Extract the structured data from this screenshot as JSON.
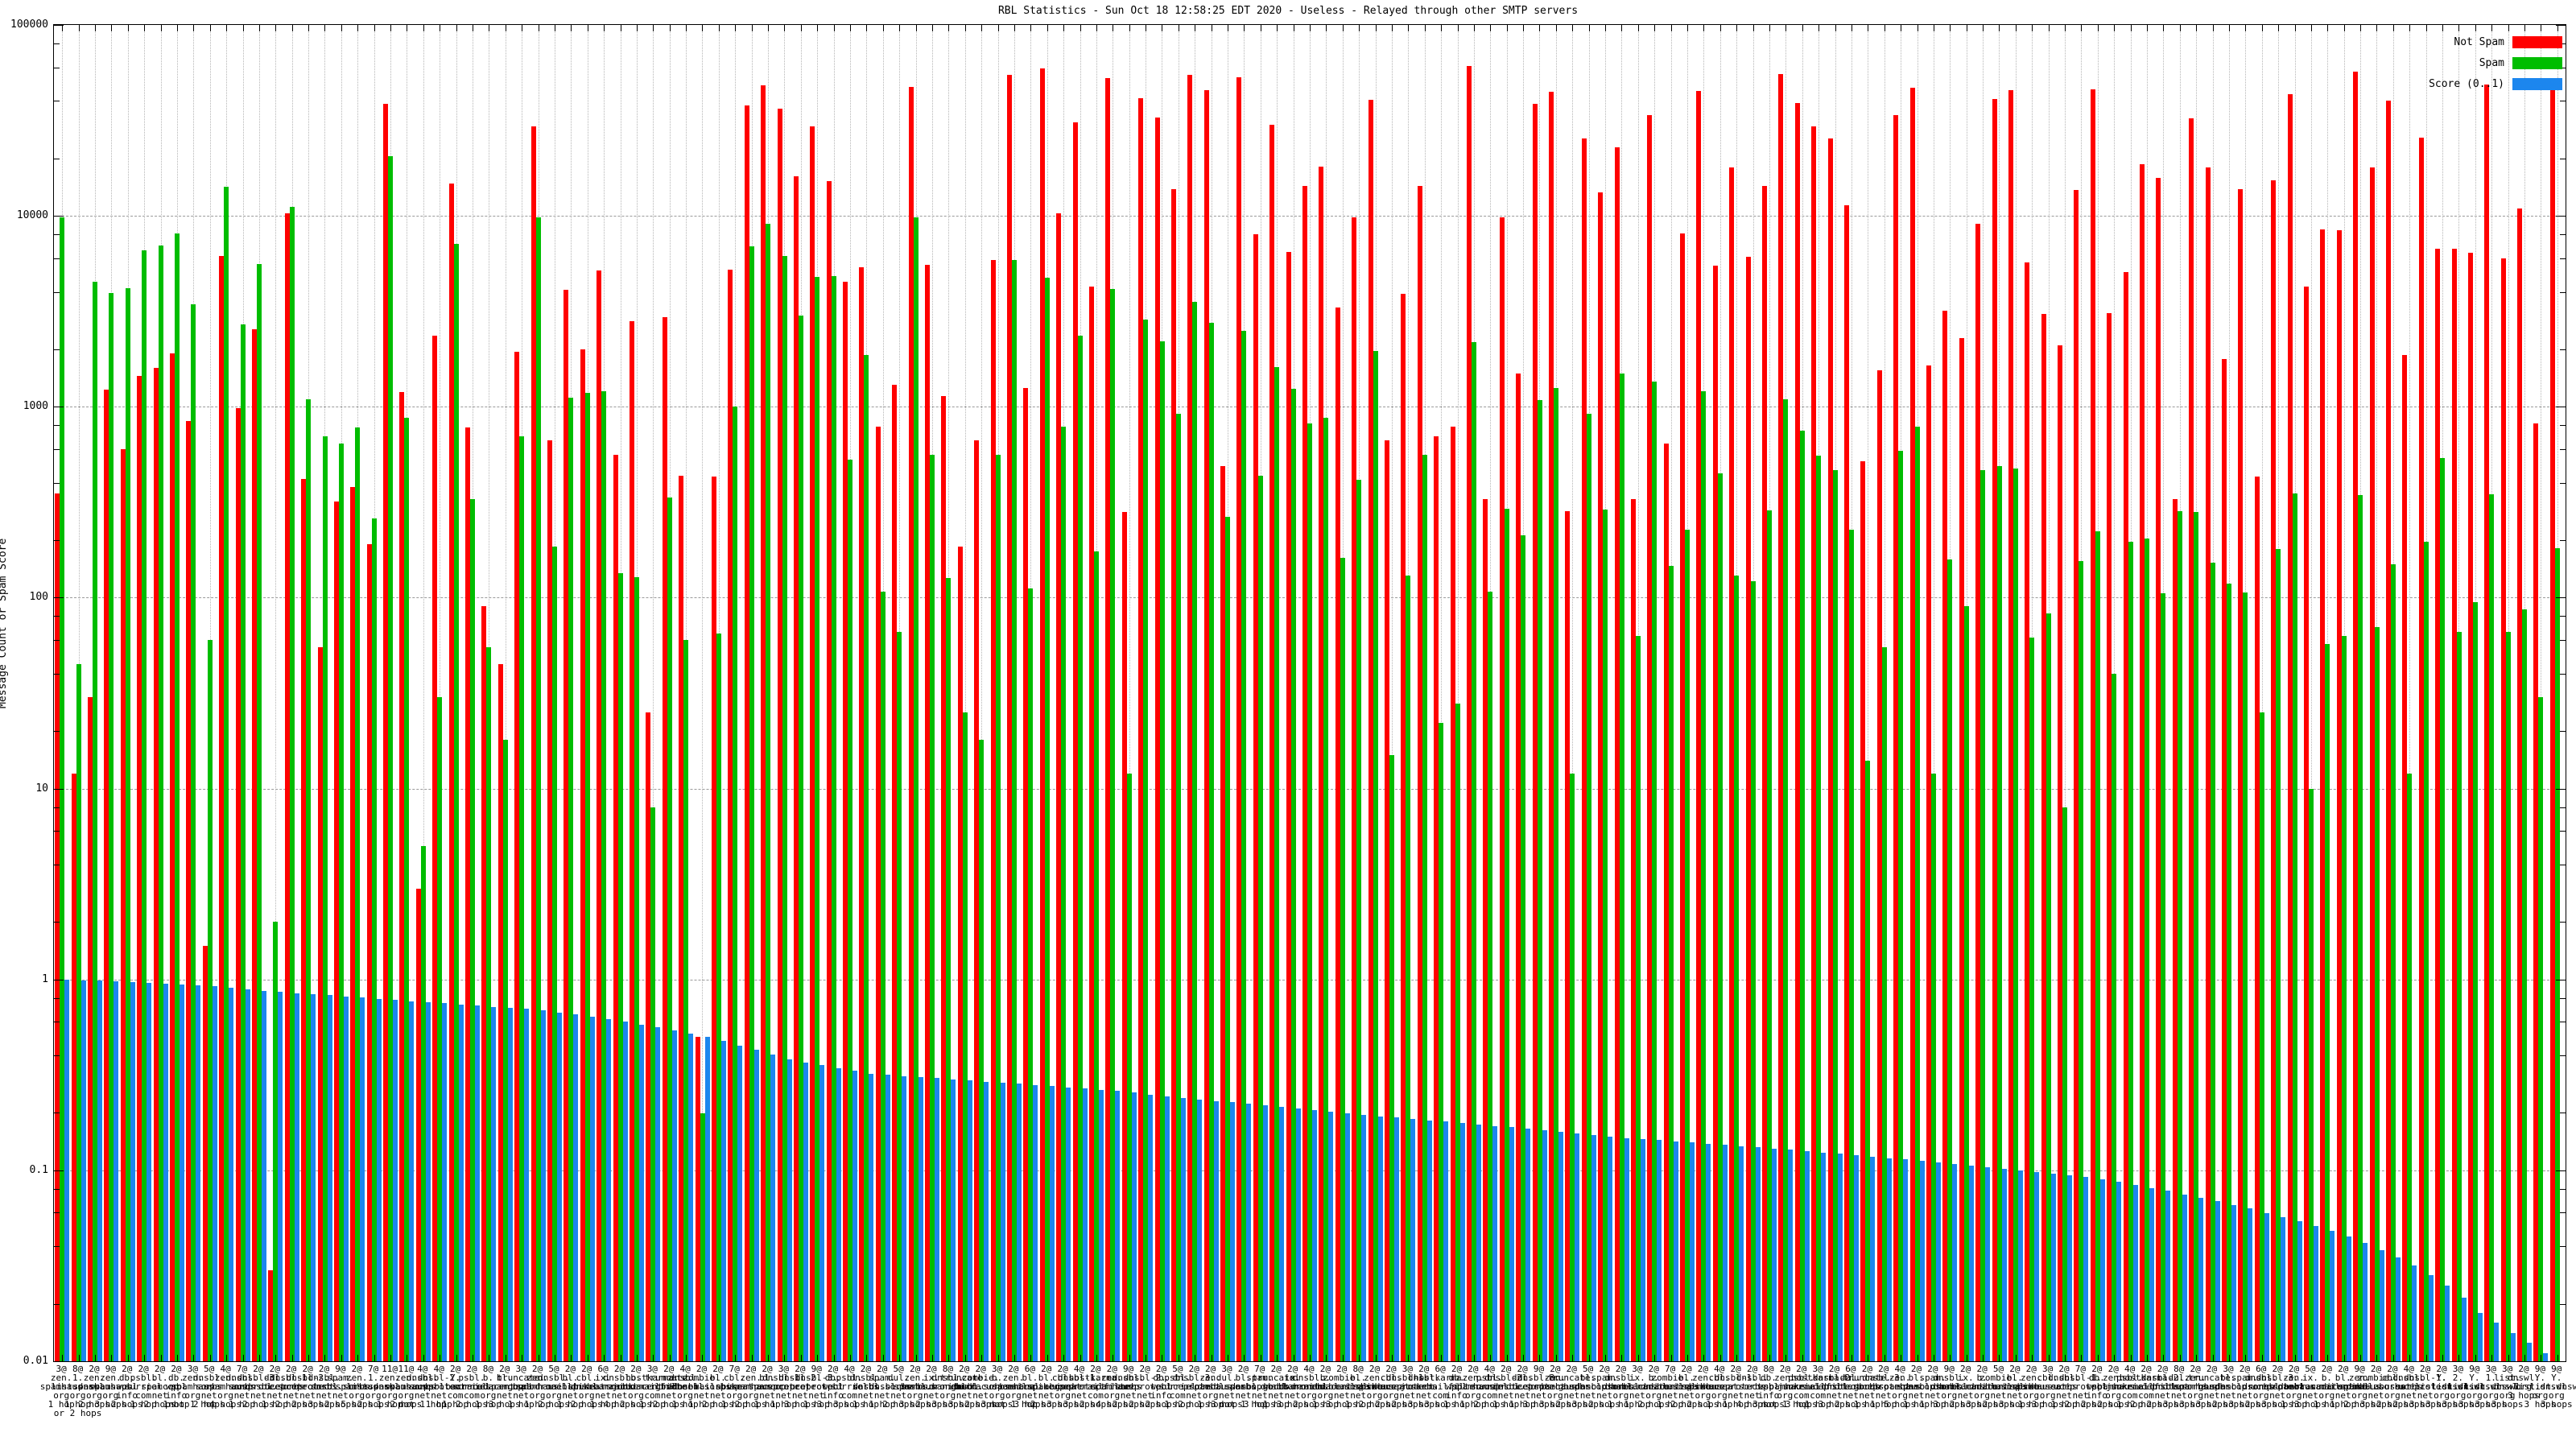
{
  "title": "RBL Statistics - Sun Oct 18 12:58:25 EDT 2020 - Useless - Relayed through other SMTP servers",
  "ylabel": "Message Count or Spam Score",
  "yticks": [
    "100000",
    "10000",
    "1000",
    "100",
    "10",
    "1",
    "0.1",
    "0.01"
  ],
  "chart_data": {
    "type": "bar",
    "yscale": "log",
    "ylim": [
      0.01,
      100000
    ],
    "grid": true,
    "legend_position": "top-right-inside",
    "colors": {
      "not_spam": "#ff0000",
      "spam": "#00bd00",
      "score": "#1c86ee",
      "grid": "#9a9a9a"
    },
    "categories": [
      "3@ zen.spamhaus.org 1 hop",
      "8@ 1.list.dnswl.org 1 hop or 2 hops",
      "2@ zen.spamhaus.org 2 hops",
      "9@ zen.spamhaus.org 3 hops",
      "2@ db.wpbl.info 2 hops",
      "2@ psbl.surriel.com 1 hop",
      "2@ bl.spamcop.net 2 hops",
      "2@ db.wpbl.info 1 hop",
      "3@ zen.spamhaus.org not 1 hop",
      "5@ dnsbl.sorbs.net 2 hops",
      "4@ zen.spamhaus.org 4 hops",
      "7@ dnsbl.sorbs.net 1 hop",
      "2@ dnsbl-3.uceprotect.net 2 hops",
      "2@ dul.dnsbl.sorbs.net 1 hop",
      "2@ dnsbl-1.uceprotect.net 2 hops",
      "2@ dnsbl-2.uceprotect.net 2 hops",
      "2@ dnsbl.sorbs.net 3 hops",
      "9@ spam.dnsbl.sorbs.net 2 hops",
      "2@ zen.spamhaus.org 5 hops",
      "7@ 1.list.dnswl.org 2 hops",
      "11@ zen.spamhaus.org 1 hop",
      "11@ zen.spamhaus.org 2 hops",
      "4@ dnsbl.sorbs.net not 1 hop",
      "4@ dnsbl-2.uceprotect.net 1 hop",
      "2@ Y.psbl.surriel.com 1 hop",
      "2@ psbl.surriel.com 2 hops",
      "8@ b.barracudacentral.org 1 hop",
      "2@ bl.spamcop.net 3 hops",
      "3@ truncate.gbudb.net 1 hop",
      "2@ zen.spamhaus.org 1 hop",
      "5@ dnsbl.dronebl.org 2 hops",
      "2@ bl.mailspike.net 1 hop",
      "2@ cbl.abuseat.org 2 hops",
      "6@ ix.dnsbl.manitu.net 1 hop",
      "2@ dnsbl.sorbs.net 4 hops",
      "2@ b.barracudacentral.org 2 hops",
      "3@ hostkarma.junkemailfilter.com 1 hop",
      "2@ truncate.gbudb.net 2 hops",
      "4@ dnsbl.dronebl.org 1 hop",
      "2@ zombie.dnsbl.sorbs.net 1 hop",
      "2@ bl.mailspike.net 2 hops",
      "7@ cbl.abuseat.org 1 hop",
      "2@ zen.spamhaus.org 2 hops",
      "2@ bl.spamcop.net 1 hop",
      "3@ dnsbl-1.uceprotect.net 1 hop",
      "2@ dnsbl-2.uceprotect.net 3 hops",
      "9@ dnsbl-3.uceprotect.net 1 hop",
      "2@ db.wpbl.info 3 hops",
      "4@ psbl.surriel.com 3 hops",
      "2@ dnsbl.sorbs.net 1 hop",
      "2@ spam.dnsbl.sorbs.net 1 hop",
      "5@ dul.dnsbl.sorbs.net 2 hops",
      "2@ zen.spamhaus.org 3 hops",
      "2@ ix.dnsbl.manitu.net 2 hops",
      "8@ dnsbl.dronebl.org 3 hops",
      "2@ truncate.gbudb.net 3 hops",
      "2@ zombie.dnsbl.sorbs.net 2 hops",
      "3@ b.barracudacentral.org 3 hops",
      "2@ zen.spamhaus.org not 1 hop",
      "6@ bl.mailspike.net 3 hops",
      "2@ bl.spamcop.net 2 hops",
      "2@ cbl.abuseat.org 3 hops",
      "4@ dnsbl-1.uceprotect.net 3 hops",
      "2@ hostkarma.junkemailfilter.com 2 hops",
      "2@ zen.spamhaus.org 4 hops",
      "9@ dnsbl.sorbs.net 2 hops",
      "2@ dnsbl-2.uceprotect.net 2 hops",
      "2@ db.wpbl.info 2 hops",
      "5@ psbl.surriel.com 1 hop",
      "2@ dnsbl-3.uceprotect.net 2 hops",
      "2@ zen.spamhaus.org 1 hop",
      "3@ dul.dnsbl.sorbs.net 3 hops",
      "2@ bl.spamcop.net not 1 hop",
      "7@ spam.dnsbl.sorbs.net 3 hops",
      "2@ truncate.gbudb.net 1 hop",
      "2@ ix.dnsbl.manitu.net 3 hops",
      "4@ dnsbl.dronebl.org 2 hops",
      "2@ b.barracudacentral.org 1 hop",
      "2@ zombie.dnsbl.sorbs.net 3 hops",
      "8@ bl.mailspike.net 1 hop",
      "2@ zen.spamhaus.org 2 hops",
      "2@ cbl.abuseat.org 2 hops",
      "3@ dnsbl-1.uceprotect.net 2 hops",
      "2@ dnsbl.sorbs.net 3 hops",
      "6@ hostkarma.junkemailfilter.com 3 hops",
      "2@ db.wpbl.info 1 hop",
      "2@ zen.spamhaus.org 1 hop",
      "4@ psbl.surriel.com 2 hops",
      "2@ dnsbl-2.uceprotect.net 1 hop",
      "2@ dul.dnsbl.sorbs.net 1 hop",
      "9@ dnsbl-3.uceprotect.net 3 hops",
      "2@ zen.spamhaus.org 3 hops",
      "2@ truncate.gbudb.net 2 hops",
      "5@ bl.spamcop.net 3 hops",
      "2@ spam.dnsbl.sorbs.net 2 hops",
      "2@ dnsbl.dronebl.org 1 hop",
      "3@ ix.dnsbl.manitu.net 1 hop",
      "2@ b.barracudacentral.org 2 hops",
      "7@ zombie.dnsbl.sorbs.net 1 hop",
      "2@ bl.mailspike.net 2 hops",
      "2@ zen.spamhaus.org 2 hops",
      "4@ cbl.abuseat.org 1 hop",
      "2@ dnsbl-1.uceprotect.net 1 hop",
      "2@ dnsbl.sorbs.net 4 hops",
      "8@ db.wpbl.info 3 hops",
      "2@ zen.spamhaus.org not 1 hop",
      "2@ psbl.surriel.com 3 hops",
      "3@ hostkarma.junkemailfilter.com 1 hop",
      "2@ dnsbl-2.uceprotect.net 3 hops",
      "6@ dul.dnsbl.sorbs.net 2 hops",
      "2@ truncate.gbudb.net 1 hop",
      "2@ dnsbl-3.uceprotect.net 1 hop",
      "4@ zen.spamhaus.org 5 hops",
      "2@ bl.spamcop.net 1 hop",
      "2@ spam.dnsbl.sorbs.net 1 hop",
      "9@ dnsbl.dronebl.org 3 hops",
      "2@ ix.dnsbl.manitu.net 2 hops",
      "2@ b.barracudacentral.org 3 hops",
      "5@ zombie.dnsbl.sorbs.net 2 hops",
      "2@ bl.mailspike.net 3 hops",
      "2@ zen.spamhaus.org 1 hop",
      "3@ cbl.abuseat.org 3 hops",
      "2@ dnsbl.sorbs.net 1 hop",
      "7@ dnsbl-1.uceprotect.net 2 hops",
      "2@ db.wpbl.info 2 hops",
      "2@ zen.spamhaus.org 2 hops",
      "4@ psbl.surriel.com 1 hop",
      "2@ hostkarma.junkemailfilter.com 2 hops",
      "2@ dnsbl-2.uceprotect.net 2 hops",
      "8@ dul.dnsbl.sorbs.net 3 hops",
      "2@ zen.spamhaus.org 3 hops",
      "2@ truncate.gbudb.net 3 hops",
      "3@ bl.spamcop.net 2 hops",
      "2@ spam.dnsbl.sorbs.net 3 hops",
      "6@ dnsbl.dronebl.org 2 hops",
      "2@ dnsbl-3.uceprotect.net 3 hops",
      "2@ zen.spamhaus.org 1 hop",
      "5@ ix.dnsbl.manitu.net 3 hops",
      "2@ b.barracudacentral.org 1 hop",
      "2@ bl.mailspike.net 1 hop",
      "9@ zen.spamhaus.org 2 hops",
      "2@ zombie.dnsbl.sorbs.net 3 hops",
      "2@ cbl.abuseat.org 2 hops",
      "4@ dnsbl.sorbs.net 2 hops",
      "2@ dnsbl-1.uceprotect.net 3 hops",
      "2@ Y.list.dnswl.org 3 hops",
      "3@ 2.list.dnswl.org 3 hops",
      "9@ Y.list.dnswl.org 3 hops",
      "3@ 1.list.dnswl.org 3 hops",
      "3@ list.dnswl.org 3 hops",
      "2@ dnswl.org 3 hops",
      "9@ Y.list.dnswl.org 3 hops",
      "9@ Y.list.dnswl.org 3 hops"
    ],
    "series": [
      {
        "name": "Not Spam",
        "color": "#ff0000",
        "values": [
          350,
          12,
          30,
          1230,
          600,
          1450,
          1600,
          1900,
          840,
          1.5,
          6150,
          980,
          2550,
          0.03,
          10300,
          420,
          55,
          320,
          380,
          190,
          38500,
          1200,
          3,
          2350,
          14800,
          780,
          90,
          45,
          1950,
          29500,
          665,
          4100,
          2000,
          5200,
          560,
          2800,
          25,
          2950,
          435,
          0.5,
          430,
          5250,
          38000,
          48500,
          36500,
          16200,
          29500,
          15200,
          4500,
          5400,
          790,
          1300,
          47500,
          5550,
          1140,
          185,
          670,
          5900,
          55000,
          1250,
          59000,
          10300,
          30800,
          4250,
          52500,
          280,
          41500,
          32700,
          13800,
          55000,
          45500,
          490,
          53000,
          8000,
          30000,
          6500,
          14300,
          18200,
          3300,
          9800,
          40500,
          665,
          3900,
          14300,
          700,
          790,
          61000,
          330,
          9800,
          1500,
          38500,
          44500,
          285,
          25500,
          13300,
          22800,
          330,
          33800,
          640,
          8100,
          45000,
          5500,
          18000,
          6100,
          14300,
          55500,
          39000,
          29500,
          25500,
          11400,
          520,
          1560,
          33800,
          47000,
          1640,
          3200,
          2300,
          9100,
          41000,
          45500,
          5700,
          3050,
          2100,
          13700,
          45800,
          3100,
          5100,
          18700,
          15800,
          330,
          32300,
          18000,
          1780,
          13800,
          430,
          15400,
          43500,
          4250,
          8500,
          8400,
          57000,
          17900,
          40000,
          1870,
          25800,
          6700,
          6700,
          6400,
          49000,
          6000,
          10900,
          820,
          46800
        ]
      },
      {
        "name": "Spam",
        "color": "#00bd00",
        "values": [
          9800,
          45,
          4500,
          3950,
          4200,
          6600,
          7000,
          8100,
          3450,
          60,
          14200,
          2700,
          5600,
          2,
          11200,
          1100,
          700,
          640,
          780,
          260,
          20500,
          880,
          5,
          30,
          7100,
          330,
          55,
          18,
          700,
          9800,
          186,
          1120,
          1180,
          1210,
          135,
          128,
          8,
          335,
          60,
          0.2,
          65,
          1000,
          6900,
          9100,
          6150,
          3000,
          4800,
          4850,
          530,
          1870,
          108,
          66,
          9800,
          560,
          127,
          25,
          18,
          560,
          5850,
          112,
          4750,
          790,
          2350,
          175,
          4150,
          12,
          2850,
          2200,
          920,
          3550,
          2750,
          265,
          2500,
          435,
          1620,
          1240,
          815,
          880,
          162,
          415,
          1960,
          15,
          130,
          560,
          22,
          28,
          2180,
          108,
          292,
          212,
          1080,
          1250,
          12,
          920,
          290,
          1500,
          63,
          1360,
          147,
          228,
          1210,
          450,
          130,
          122,
          286,
          1100,
          750,
          555,
          465,
          227,
          14,
          55,
          590,
          785,
          12,
          158,
          90,
          465,
          490,
          475,
          62,
          83,
          8,
          156,
          222,
          40,
          196,
          205,
          105,
          285,
          280,
          152,
          118,
          106,
          25,
          180,
          350,
          10,
          57,
          63,
          345,
          70,
          150,
          12,
          196,
          540,
          66,
          95,
          348,
          66,
          87,
          30,
          182
        ]
      },
      {
        "name": "Score (0..1)",
        "color": "#1c86ee",
        "values": [
          1.0,
          0.99,
          0.985,
          0.978,
          0.97,
          0.96,
          0.95,
          0.94,
          0.93,
          0.92,
          0.905,
          0.89,
          0.875,
          0.862,
          0.85,
          0.838,
          0.826,
          0.814,
          0.802,
          0.79,
          0.78,
          0.77,
          0.76,
          0.75,
          0.74,
          0.73,
          0.72,
          0.71,
          0.7,
          0.69,
          0.672,
          0.654,
          0.636,
          0.618,
          0.6,
          0.58,
          0.56,
          0.54,
          0.52,
          0.5,
          0.476,
          0.452,
          0.428,
          0.404,
          0.38,
          0.368,
          0.356,
          0.344,
          0.332,
          0.32,
          0.316,
          0.312,
          0.308,
          0.304,
          0.3,
          0.296,
          0.292,
          0.288,
          0.284,
          0.28,
          0.276,
          0.272,
          0.268,
          0.264,
          0.26,
          0.255,
          0.25,
          0.245,
          0.24,
          0.235,
          0.231,
          0.227,
          0.223,
          0.219,
          0.215,
          0.211,
          0.207,
          0.203,
          0.199,
          0.195,
          0.192,
          0.189,
          0.186,
          0.183,
          0.18,
          0.177,
          0.174,
          0.171,
          0.168,
          0.165,
          0.162,
          0.159,
          0.156,
          0.153,
          0.15,
          0.148,
          0.146,
          0.144,
          0.142,
          0.14,
          0.138,
          0.136,
          0.134,
          0.132,
          0.13,
          0.128,
          0.126,
          0.124,
          0.122,
          0.12,
          0.118,
          0.116,
          0.114,
          0.112,
          0.11,
          0.108,
          0.106,
          0.104,
          0.102,
          0.1,
          0.098,
          0.096,
          0.094,
          0.092,
          0.09,
          0.087,
          0.084,
          0.081,
          0.078,
          0.075,
          0.072,
          0.069,
          0.066,
          0.063,
          0.06,
          0.057,
          0.054,
          0.051,
          0.048,
          0.045,
          0.0417,
          0.0383,
          0.035,
          0.0317,
          0.0283,
          0.025,
          0.0215,
          0.018,
          0.016,
          0.014,
          0.0125,
          0.011,
          0.01
        ]
      }
    ]
  }
}
